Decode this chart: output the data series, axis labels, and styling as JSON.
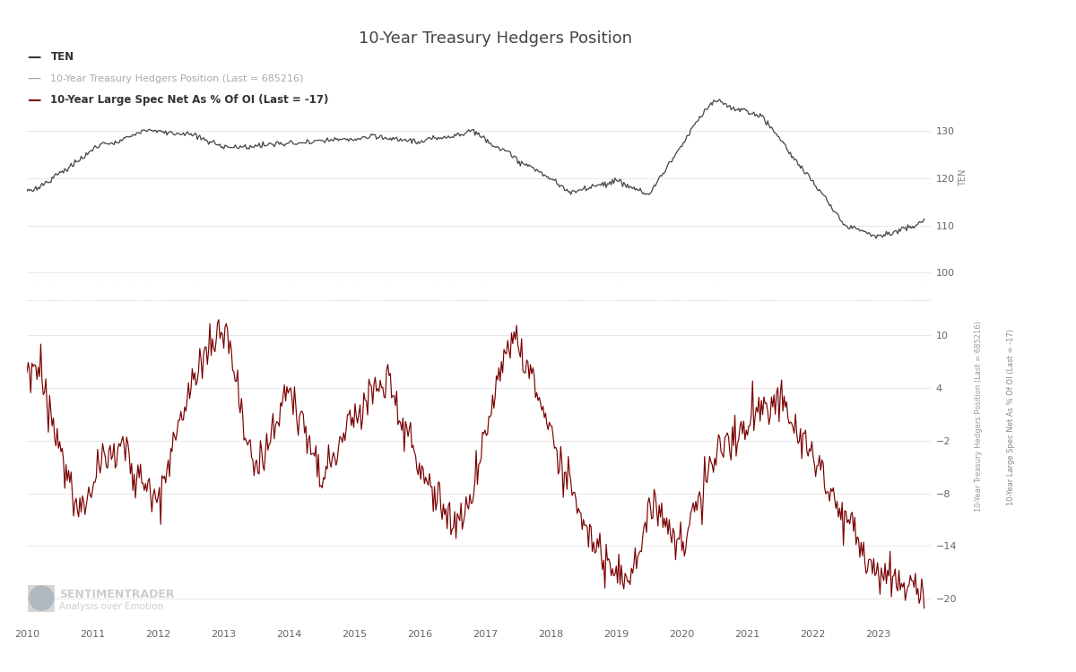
{
  "title": "10-Year Treasury Hedgers Position",
  "title_fontsize": 13,
  "background_color": "#ffffff",
  "legend_items": [
    {
      "label": "TEN",
      "color": "#333333",
      "linewidth": 2.0
    },
    {
      "label": "10-Year Treasury Hedgers Position (Last = 685216)",
      "color": "#aaaaaa",
      "linewidth": 1.0
    },
    {
      "label": "10-Year Large Spec Net As % Of OI (Last = -17)",
      "color": "#7a0000",
      "linewidth": 1.8
    }
  ],
  "top_panel": {
    "ylabel_right": "TEN",
    "yticks": [
      100,
      110,
      120,
      130
    ],
    "ylim": [
      97,
      140
    ],
    "color": "#444444",
    "linewidth": 0.9
  },
  "bottom_panel": {
    "ylabel_right1": "10-Year Treasury Hedgers Position (Last = 685216)",
    "ylabel_right2": "10-Year Large Spec Net As % Of OI (Last = -17)",
    "yticks": [
      -20,
      -14,
      -8,
      -2,
      4,
      10
    ],
    "ylim": [
      -23,
      14
    ],
    "color": "#7a0000",
    "linewidth": 0.85
  },
  "xaxis": {
    "start_year": 2010,
    "end_year": 2023.8,
    "tick_years": [
      2010,
      2011,
      2012,
      2013,
      2014,
      2015,
      2016,
      2017,
      2018,
      2019,
      2020,
      2021,
      2022,
      2023
    ]
  },
  "watermark_text": "SENTIMENTRADER",
  "watermark_sub": "Analysis over Emotion",
  "watermark_color": "#c8c8c8",
  "watermark_fontsize": 8.5,
  "grid_color": "#e8e8e8",
  "separator_color": "#cccccc"
}
